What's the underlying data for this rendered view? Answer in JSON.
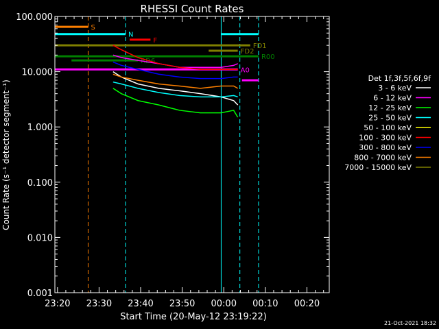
{
  "chart_data": {
    "type": "line",
    "title": "RHESSI Count Rates",
    "xlabel": "Start Time (20-May-12 23:19:22)",
    "ylabel": "Count Rate (s⁻¹ detector segment⁻¹)",
    "yscale": "log",
    "ylim": [
      0.001,
      100
    ],
    "xlim_min": [
      0,
      66
    ],
    "x_tick_labels": [
      "23:20",
      "23:30",
      "23:40",
      "23:50",
      "00:00",
      "00:10",
      "00:20"
    ],
    "x_ticks_min": [
      0.63,
      10.63,
      20.63,
      30.63,
      40.63,
      50.63,
      60.63
    ],
    "y_tick_labels": [
      "0.001",
      "0.010",
      "0.100",
      "1.000",
      "10.000",
      "100.000"
    ],
    "y_ticks": [
      0.001,
      0.01,
      0.1,
      1,
      10,
      100
    ],
    "legend": {
      "title": "Det 1f,3f,5f,6f,9f",
      "placement": "right",
      "entries": [
        {
          "label": "3 - 6 keV",
          "color": "#ffffff"
        },
        {
          "label": "6 - 12 keV",
          "color": "#ff00ff"
        },
        {
          "label": "12 - 25 keV",
          "color": "#00ff00"
        },
        {
          "label": "25 - 50 keV",
          "color": "#00ffff"
        },
        {
          "label": "50 - 100 keV",
          "color": "#ffff00"
        },
        {
          "label": "100 - 300 keV",
          "color": "#ff0000"
        },
        {
          "label": "300 - 800 keV",
          "color": "#0000ff"
        },
        {
          "label": "800 - 7000 keV",
          "color": "#ff8000"
        },
        {
          "label": "7000 - 15000 keV",
          "color": "#808000"
        }
      ]
    },
    "series": [
      {
        "name": "3 - 6 keV",
        "color": "#ffffff",
        "x": [
          14,
          16,
          20,
          25,
          30,
          35,
          40,
          43,
          44
        ],
        "y": [
          10,
          8,
          6,
          5,
          4.5,
          4,
          3.5,
          3,
          2.5
        ]
      },
      {
        "name": "6 - 12 keV",
        "color": "#ff00ff",
        "x": [
          14,
          16,
          20,
          25,
          30,
          35,
          40,
          43,
          44
        ],
        "y": [
          20,
          18,
          16,
          14,
          12,
          12,
          12,
          13,
          14
        ]
      },
      {
        "name": "12 - 25 keV",
        "color": "#00ff00",
        "x": [
          14,
          16,
          20,
          25,
          30,
          35,
          40,
          43,
          44
        ],
        "y": [
          5,
          4,
          3,
          2.5,
          2,
          1.8,
          1.8,
          2,
          1.5
        ]
      },
      {
        "name": "25 - 50 keV",
        "color": "#00ffff",
        "x": [
          14,
          16,
          20,
          25,
          30,
          35,
          40,
          43,
          44
        ],
        "y": [
          6.5,
          6,
          5,
          4.2,
          3.7,
          3.5,
          3.5,
          3.7,
          3.5
        ]
      },
      {
        "name": "100 - 300 keV",
        "color": "#ff0000",
        "x": [
          14,
          16,
          20,
          25,
          30,
          35,
          40,
          43,
          44
        ],
        "y": [
          30,
          25,
          18,
          14,
          12,
          11,
          11,
          11,
          11
        ]
      },
      {
        "name": "300 - 800 keV",
        "color": "#0000ff",
        "x": [
          14,
          16,
          20,
          25,
          30,
          35,
          40,
          43,
          44
        ],
        "y": [
          15,
          13,
          11,
          9,
          8,
          7.5,
          7.5,
          8,
          8
        ]
      },
      {
        "name": "800 - 7000 keV",
        "color": "#ff8000",
        "x": [
          14,
          16,
          20,
          25,
          30,
          35,
          40,
          43,
          44
        ],
        "y": [
          9,
          8,
          7,
          6,
          5.5,
          5,
          5.5,
          5.5,
          5
        ]
      }
    ],
    "state_bars": [
      {
        "label": "S",
        "color": "#ff8000",
        "y": 65,
        "x0": 0,
        "x1": 8
      },
      {
        "label": "N",
        "color": "#00ffff",
        "y": 48,
        "x0": 0,
        "x1": 17
      },
      {
        "label": "",
        "color": "#00ffff",
        "y": 48,
        "x0": 40,
        "x1": 49
      },
      {
        "label": "F",
        "color": "#ff0000",
        "y": 38,
        "x0": 18,
        "x1": 23
      },
      {
        "label": "FD1",
        "color": "#808000",
        "y": 30,
        "x0": 0,
        "x1": 47
      },
      {
        "label": "FD2",
        "color": "#808000",
        "y": 24,
        "x0": 37,
        "x1": 44
      },
      {
        "label": "R00",
        "color": "#008000",
        "y": 19,
        "x0": 0,
        "x1": 49
      },
      {
        "label": "RD6",
        "color": "#008000",
        "y": 16,
        "x0": 4,
        "x1": 20
      },
      {
        "label": "A0",
        "color": "#ff00ff",
        "y": 11,
        "x0": 0,
        "x1": 44
      },
      {
        "label": "",
        "color": "#ff00ff",
        "y": 7,
        "x0": 45,
        "x1": 49
      }
    ],
    "vertical_lines": [
      {
        "x": 0,
        "color": "#00ffff",
        "dashed": false
      },
      {
        "x": 8,
        "color": "#ff8000",
        "dashed": true
      },
      {
        "x": 17,
        "color": "#00ffff",
        "dashed": true
      },
      {
        "x": 40,
        "color": "#00ffff",
        "dashed": false
      },
      {
        "x": 44.5,
        "color": "#00ffff",
        "dashed": true
      },
      {
        "x": 49,
        "color": "#00ffff",
        "dashed": true
      }
    ],
    "timestamp": "21-Oct-2021 18:32"
  }
}
